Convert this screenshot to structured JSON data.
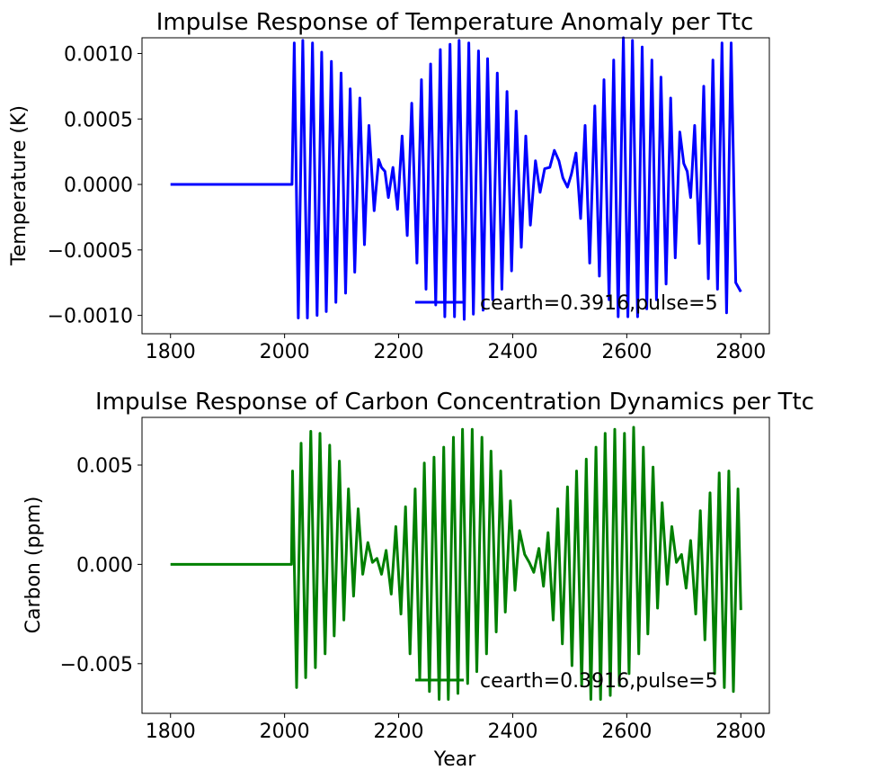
{
  "chart_data": [
    {
      "type": "line",
      "title": "Impulse Response of Temperature Anomaly per Ttc",
      "xlabel": "",
      "ylabel": "Temperature (K)",
      "xlim": [
        1750,
        2850
      ],
      "ylim": [
        -0.00114,
        0.00112
      ],
      "x_ticks": [
        1800,
        2000,
        2200,
        2400,
        2600,
        2800
      ],
      "x_tick_labels": [
        "1800",
        "2000",
        "2200",
        "2400",
        "2600",
        "2800"
      ],
      "y_ticks": [
        -0.001,
        -0.0005,
        0.0,
        0.0005,
        0.001
      ],
      "y_tick_labels": [
        "−0.0010",
        "−0.0005",
        "0.0000",
        "0.0005",
        "0.0010"
      ],
      "grid": false,
      "legend_position": "lower-right",
      "color": "#0000ff",
      "series": [
        {
          "name": "cearth=0.3916,pulse=5",
          "color": "#0000ff",
          "flat_until": 2010,
          "points": [
            [
              1800,
              0.0
            ],
            [
              2010,
              0.0
            ],
            [
              2013,
              0.0
            ],
            [
              2017,
              0.00108
            ],
            [
              2024,
              -0.00102
            ],
            [
              2032,
              0.0011
            ],
            [
              2040,
              -0.00102
            ],
            [
              2049,
              0.00108
            ],
            [
              2057,
              -0.001
            ],
            [
              2065,
              0.00101
            ],
            [
              2073,
              -0.00097
            ],
            [
              2082,
              0.00094
            ],
            [
              2090,
              -0.0009
            ],
            [
              2099,
              0.00085
            ],
            [
              2107,
              -0.00083
            ],
            [
              2115,
              0.00073
            ],
            [
              2123,
              -0.00067
            ],
            [
              2132,
              0.00066
            ],
            [
              2140,
              -0.00046
            ],
            [
              2148,
              0.00045
            ],
            [
              2157,
              -0.0002
            ],
            [
              2165,
              0.00019
            ],
            [
              2170,
              0.00013
            ],
            [
              2176,
              0.0001
            ],
            [
              2182,
              -0.0001
            ],
            [
              2190,
              0.00013
            ],
            [
              2198,
              -0.00019
            ],
            [
              2206,
              0.00037
            ],
            [
              2215,
              -0.00039
            ],
            [
              2223,
              0.00062
            ],
            [
              2232,
              -0.0006
            ],
            [
              2240,
              0.0008
            ],
            [
              2248,
              -0.0008
            ],
            [
              2256,
              0.00092
            ],
            [
              2265,
              -0.00092
            ],
            [
              2273,
              0.00103
            ],
            [
              2281,
              -0.00101
            ],
            [
              2290,
              0.00107
            ],
            [
              2298,
              -0.00101
            ],
            [
              2306,
              0.0011
            ],
            [
              2315,
              -0.00103
            ],
            [
              2323,
              0.00108
            ],
            [
              2331,
              -0.00099
            ],
            [
              2340,
              0.00102
            ],
            [
              2348,
              -0.00096
            ],
            [
              2356,
              0.00096
            ],
            [
              2365,
              -0.00088
            ],
            [
              2373,
              0.00085
            ],
            [
              2381,
              -0.0008
            ],
            [
              2390,
              0.00071
            ],
            [
              2398,
              -0.00066
            ],
            [
              2406,
              0.00056
            ],
            [
              2415,
              -0.00048
            ],
            [
              2423,
              0.00037
            ],
            [
              2431,
              -0.00031
            ],
            [
              2440,
              0.00018
            ],
            [
              2448,
              -6e-05
            ],
            [
              2456,
              0.00012
            ],
            [
              2465,
              0.00013
            ],
            [
              2473,
              0.00026
            ],
            [
              2481,
              0.00018
            ],
            [
              2488,
              5e-05
            ],
            [
              2496,
              -2e-05
            ],
            [
              2503,
              8e-05
            ],
            [
              2511,
              0.00024
            ],
            [
              2519,
              -0.00026
            ],
            [
              2527,
              0.00045
            ],
            [
              2535,
              -0.0006
            ],
            [
              2544,
              0.0006
            ],
            [
              2552,
              -0.0007
            ],
            [
              2560,
              0.0008
            ],
            [
              2569,
              -0.00088
            ],
            [
              2577,
              0.00095
            ],
            [
              2585,
              -0.00101
            ],
            [
              2594,
              0.00112
            ],
            [
              2602,
              -0.00101
            ],
            [
              2610,
              0.0011
            ],
            [
              2619,
              -0.00101
            ],
            [
              2627,
              0.00105
            ],
            [
              2635,
              -0.00095
            ],
            [
              2644,
              0.00095
            ],
            [
              2652,
              -0.00088
            ],
            [
              2660,
              0.00082
            ],
            [
              2669,
              -0.00076
            ],
            [
              2677,
              0.00066
            ],
            [
              2685,
              -0.00056
            ],
            [
              2693,
              0.0004
            ],
            [
              2700,
              0.00016
            ],
            [
              2706,
              0.0001
            ],
            [
              2712,
              -0.0001
            ],
            [
              2719,
              0.00045
            ],
            [
              2727,
              -0.00045
            ],
            [
              2735,
              0.00075
            ],
            [
              2743,
              -0.00072
            ],
            [
              2751,
              0.00095
            ],
            [
              2759,
              -0.0008
            ],
            [
              2767,
              0.00108
            ],
            [
              2775,
              -0.00098
            ],
            [
              2783,
              0.00108
            ],
            [
              2791,
              -0.00075
            ],
            [
              2800,
              -0.00082
            ]
          ]
        }
      ]
    },
    {
      "type": "line",
      "title": "Impulse Response of Carbon Concentration Dynamics per Ttc",
      "xlabel": "Year",
      "ylabel": "Carbon (ppm)",
      "xlim": [
        1750,
        2850
      ],
      "ylim": [
        -0.0075,
        0.0074
      ],
      "x_ticks": [
        1800,
        2000,
        2200,
        2400,
        2600,
        2800
      ],
      "x_tick_labels": [
        "1800",
        "2000",
        "2200",
        "2400",
        "2600",
        "2800"
      ],
      "y_ticks": [
        -0.005,
        0.0,
        0.005
      ],
      "y_tick_labels": [
        "−0.005",
        "0.000",
        "0.005"
      ],
      "grid": false,
      "legend_position": "lower-right",
      "color": "#008000",
      "series": [
        {
          "name": "cearth=0.3916,pulse=5",
          "color": "#008000",
          "flat_until": 2010,
          "points": [
            [
              1800,
              0.0
            ],
            [
              2010,
              0.0
            ],
            [
              2012,
              0.0
            ],
            [
              2014,
              0.0047
            ],
            [
              2021,
              -0.0062
            ],
            [
              2029,
              0.0061
            ],
            [
              2037,
              -0.0057
            ],
            [
              2046,
              0.0067
            ],
            [
              2054,
              -0.0052
            ],
            [
              2062,
              0.0066
            ],
            [
              2071,
              -0.0045
            ],
            [
              2079,
              0.006
            ],
            [
              2087,
              -0.0036
            ],
            [
              2096,
              0.0052
            ],
            [
              2104,
              -0.0028
            ],
            [
              2112,
              0.0038
            ],
            [
              2121,
              -0.0016
            ],
            [
              2129,
              0.0028
            ],
            [
              2137,
              -0.0005
            ],
            [
              2146,
              0.0011
            ],
            [
              2154,
              0.0001
            ],
            [
              2162,
              0.0003
            ],
            [
              2170,
              -0.0005
            ],
            [
              2178,
              0.0007
            ],
            [
              2187,
              -0.0015
            ],
            [
              2195,
              0.0019
            ],
            [
              2204,
              -0.0025
            ],
            [
              2212,
              0.0029
            ],
            [
              2220,
              -0.0045
            ],
            [
              2229,
              0.0038
            ],
            [
              2237,
              -0.0058
            ],
            [
              2245,
              0.0051
            ],
            [
              2254,
              -0.0064
            ],
            [
              2262,
              0.0054
            ],
            [
              2271,
              -0.0068
            ],
            [
              2279,
              0.0059
            ],
            [
              2287,
              -0.0068
            ],
            [
              2296,
              0.0064
            ],
            [
              2304,
              -0.0065
            ],
            [
              2312,
              0.0068
            ],
            [
              2321,
              -0.006
            ],
            [
              2329,
              0.0068
            ],
            [
              2337,
              -0.0054
            ],
            [
              2346,
              0.0064
            ],
            [
              2354,
              -0.0045
            ],
            [
              2362,
              0.0057
            ],
            [
              2371,
              -0.0034
            ],
            [
              2379,
              0.0047
            ],
            [
              2387,
              -0.0024
            ],
            [
              2396,
              0.0032
            ],
            [
              2404,
              -0.0013
            ],
            [
              2412,
              0.0017
            ],
            [
              2421,
              0.0005
            ],
            [
              2429,
              0.0001
            ],
            [
              2437,
              -0.0004
            ],
            [
              2446,
              0.0008
            ],
            [
              2454,
              -0.0011
            ],
            [
              2462,
              0.0016
            ],
            [
              2471,
              -0.0028
            ],
            [
              2479,
              0.0028
            ],
            [
              2487,
              -0.004
            ],
            [
              2496,
              0.0039
            ],
            [
              2504,
              -0.0051
            ],
            [
              2512,
              0.0047
            ],
            [
              2521,
              -0.0061
            ],
            [
              2529,
              0.0053
            ],
            [
              2537,
              -0.0068
            ],
            [
              2546,
              0.0059
            ],
            [
              2554,
              -0.0068
            ],
            [
              2562,
              0.0066
            ],
            [
              2571,
              -0.0066
            ],
            [
              2579,
              0.0068
            ],
            [
              2587,
              -0.0061
            ],
            [
              2596,
              0.0066
            ],
            [
              2604,
              -0.0055
            ],
            [
              2612,
              0.0069
            ],
            [
              2621,
              -0.0045
            ],
            [
              2629,
              0.0059
            ],
            [
              2637,
              -0.0035
            ],
            [
              2646,
              0.0049
            ],
            [
              2654,
              -0.0022
            ],
            [
              2662,
              0.0031
            ],
            [
              2671,
              -0.001
            ],
            [
              2679,
              0.0019
            ],
            [
              2687,
              0.0001
            ],
            [
              2696,
              0.0005
            ],
            [
              2704,
              -0.0012
            ],
            [
              2712,
              0.0012
            ],
            [
              2721,
              -0.0025
            ],
            [
              2729,
              0.0027
            ],
            [
              2737,
              -0.0038
            ],
            [
              2746,
              0.0036
            ],
            [
              2754,
              -0.0055
            ],
            [
              2762,
              0.0046
            ],
            [
              2771,
              -0.0062
            ],
            [
              2779,
              0.0047
            ],
            [
              2787,
              -0.0064
            ],
            [
              2795,
              0.0038
            ],
            [
              2800,
              -0.0023
            ]
          ]
        }
      ]
    }
  ]
}
